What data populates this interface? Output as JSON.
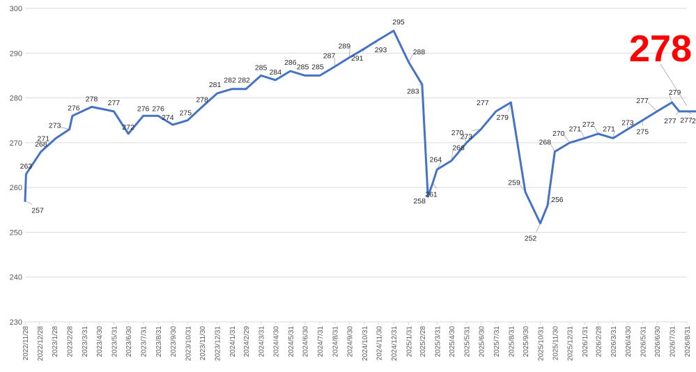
{
  "chart_data": {
    "type": "line",
    "title": "",
    "xlabel": "",
    "ylabel": "",
    "ylim": [
      230,
      300
    ],
    "yticks": [
      230,
      240,
      250,
      260,
      270,
      280,
      290,
      300
    ],
    "grid": true,
    "legend": "none",
    "line_color": "#4472c4",
    "highlight_color": "#ff0000",
    "highlight_value": "278",
    "x_tick_labels": [
      "2022/11/28",
      "2022/12/28",
      "2023/1/28",
      "2023/2/28",
      "2023/3/31",
      "2023/4/30",
      "2023/5/31",
      "2023/6/30",
      "2023/7/31",
      "2023/8/31",
      "2023/9/30",
      "2023/10/31",
      "2023/11/30",
      "2023/12/31",
      "2024/1/31",
      "2024/2/29",
      "2024/3/31",
      "2024/4/30",
      "2024/5/31",
      "2024/6/30",
      "2024/7/31",
      "2024/8/31",
      "2024/9/30",
      "2024/10/31",
      "2024/11/30",
      "2024/12/31",
      "2025/1/31",
      "2025/2/28",
      "2025/3/31",
      "2025/4/30",
      "2025/5/31",
      "2025/6/30",
      "2025/7/31",
      "2025/8/31",
      "2025/9/30",
      "2025/10/31",
      "2025/11/30",
      "2025/12/31",
      "2026/1/31",
      "2026/2/28",
      "2026/3/31",
      "2026/4/30",
      "2026/5/31",
      "2026/6/30",
      "2026/7/31",
      "2026/8/31"
    ],
    "points": [
      {
        "x": "2022/11/28",
        "y": 257,
        "label": "257"
      },
      {
        "x": "2022/11/30",
        "y": 263,
        "label": "263"
      },
      {
        "x": "2022/12/31",
        "y": 268,
        "label": "268"
      },
      {
        "x": "2023/1/31",
        "y": 271,
        "label": "271"
      },
      {
        "x": "2023/2/28",
        "y": 273,
        "label": "273"
      },
      {
        "x": "2023/3/6",
        "y": 276,
        "label": "276"
      },
      {
        "x": "2023/4/15",
        "y": 278,
        "label": "278"
      },
      {
        "x": "2023/5/31",
        "y": 277,
        "label": "277"
      },
      {
        "x": "2023/6/30",
        "y": 272,
        "label": "272"
      },
      {
        "x": "2023/7/31",
        "y": 276,
        "label": "276"
      },
      {
        "x": "2023/8/31",
        "y": 276,
        "label": "276"
      },
      {
        "x": "2023/9/30",
        "y": 274,
        "label": "274"
      },
      {
        "x": "2023/10/31",
        "y": 275,
        "label": "275"
      },
      {
        "x": "2023/11/30",
        "y": 278,
        "label": "278"
      },
      {
        "x": "2023/12/31",
        "y": 281,
        "label": "281"
      },
      {
        "x": "2024/1/31",
        "y": 282,
        "label": "282"
      },
      {
        "x": "2024/2/29",
        "y": 282,
        "label": "282"
      },
      {
        "x": "2024/3/31",
        "y": 285,
        "label": "285"
      },
      {
        "x": "2024/4/30",
        "y": 284,
        "label": "284"
      },
      {
        "x": "2024/5/31",
        "y": 286,
        "label": "286"
      },
      {
        "x": "2024/6/30",
        "y": 285,
        "label": "285"
      },
      {
        "x": "2024/7/31",
        "y": 285,
        "label": "285"
      },
      {
        "x": "2024/8/31",
        "y": 287,
        "label": "287"
      },
      {
        "x": "2024/9/30",
        "y": 289,
        "label": "289"
      },
      {
        "x": "2024/10/31",
        "y": 291,
        "label": "291"
      },
      {
        "x": "2024/11/30",
        "y": 293,
        "label": "293"
      },
      {
        "x": "2024/12/31",
        "y": 295,
        "label": "295"
      },
      {
        "x": "2025/1/31",
        "y": 288,
        "label": "288"
      },
      {
        "x": "2025/2/28",
        "y": 283,
        "label": "283"
      },
      {
        "x": "2025/3/12",
        "y": 258,
        "label": "258"
      },
      {
        "x": "2025/3/22",
        "y": 261,
        "label": "261"
      },
      {
        "x": "2025/3/31",
        "y": 264,
        "label": "264"
      },
      {
        "x": "2025/4/30",
        "y": 266,
        "label": "266"
      },
      {
        "x": "2025/5/31",
        "y": 270,
        "label": "270"
      },
      {
        "x": "2025/6/30",
        "y": 273,
        "label": "273"
      },
      {
        "x": "2025/7/31",
        "y": 277,
        "label": "277"
      },
      {
        "x": "2025/8/31",
        "y": 279,
        "label": "279"
      },
      {
        "x": "2025/9/30",
        "y": 259,
        "label": "259"
      },
      {
        "x": "2025/10/31",
        "y": 252,
        "label": "252"
      },
      {
        "x": "2025/11/15",
        "y": 256,
        "label": "256"
      },
      {
        "x": "2025/11/30",
        "y": 268,
        "label": "268"
      },
      {
        "x": "2025/12/31",
        "y": 270,
        "label": "270"
      },
      {
        "x": "2026/1/31",
        "y": 271,
        "label": "271"
      },
      {
        "x": "2026/2/28",
        "y": 272,
        "label": "272"
      },
      {
        "x": "2026/3/31",
        "y": 271,
        "label": "271"
      },
      {
        "x": "2026/4/30",
        "y": 273,
        "label": "273"
      },
      {
        "x": "2026/5/31",
        "y": 275,
        "label": "275"
      },
      {
        "x": "2026/6/30",
        "y": 277,
        "label": "277"
      },
      {
        "x": "2026/7/31",
        "y": 279,
        "label": "279"
      },
      {
        "x": "2026/8/15",
        "y": 277,
        "label": "277"
      },
      {
        "x": "2026/8/31",
        "y": 277,
        "label": "277"
      },
      {
        "x": "2026/9/30",
        "y": 277,
        "label": "277"
      },
      {
        "x": "2026/10/15",
        "y": 278,
        "label": "278"
      }
    ]
  }
}
